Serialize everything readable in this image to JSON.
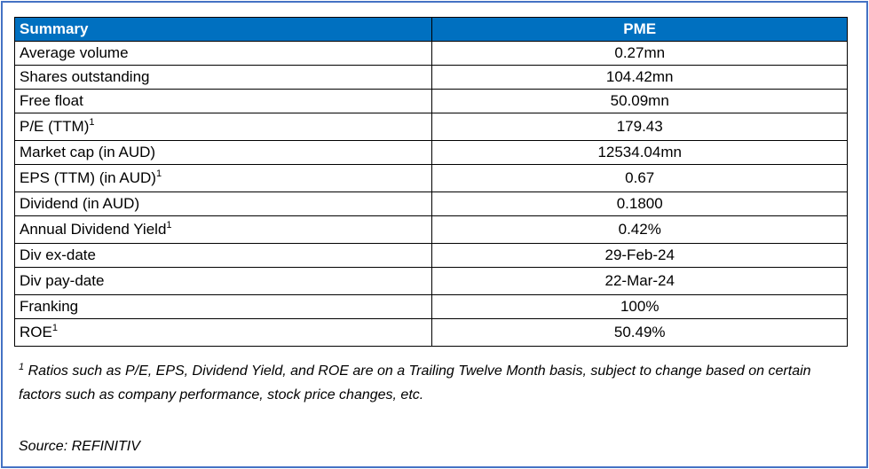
{
  "table": {
    "header_label": "Summary",
    "header_value": "PME",
    "rows": [
      {
        "label": "Average volume",
        "sup": "",
        "value": "0.27mn"
      },
      {
        "label": "Shares outstanding",
        "sup": "",
        "value": "104.42mn"
      },
      {
        "label": "Free float",
        "sup": "",
        "value": "50.09mn"
      },
      {
        "label": "P/E (TTM)",
        "sup": "1",
        "value": "179.43"
      },
      {
        "label": "Market cap (in AUD)",
        "sup": "",
        "value": "12534.04mn"
      },
      {
        "label": "EPS (TTM) (in AUD)",
        "sup": "1",
        "value": "0.67"
      },
      {
        "label": "Dividend (in AUD)",
        "sup": "",
        "value": "0.1800"
      },
      {
        "label": "Annual Dividend Yield",
        "sup": "1",
        "value": "0.42%"
      },
      {
        "label": "Div ex-date",
        "sup": "",
        "value": "29-Feb-24"
      },
      {
        "label": "Div pay-date",
        "sup": "",
        "value": "22-Mar-24"
      },
      {
        "label": "Franking",
        "sup": "",
        "value": "100%"
      },
      {
        "label": "ROE",
        "sup": "1",
        "value": "50.49%"
      }
    ]
  },
  "footnote": {
    "marker": "1",
    "text": "Ratios such as P/E, EPS, Dividend Yield, and ROE are on a Trailing Twelve Month basis, subject to change based on certain factors such as company performance, stock price changes, etc."
  },
  "source": "Source: REFINITIV",
  "colors": {
    "header_bg": "#0070C0",
    "frame_border": "#4472C4"
  }
}
